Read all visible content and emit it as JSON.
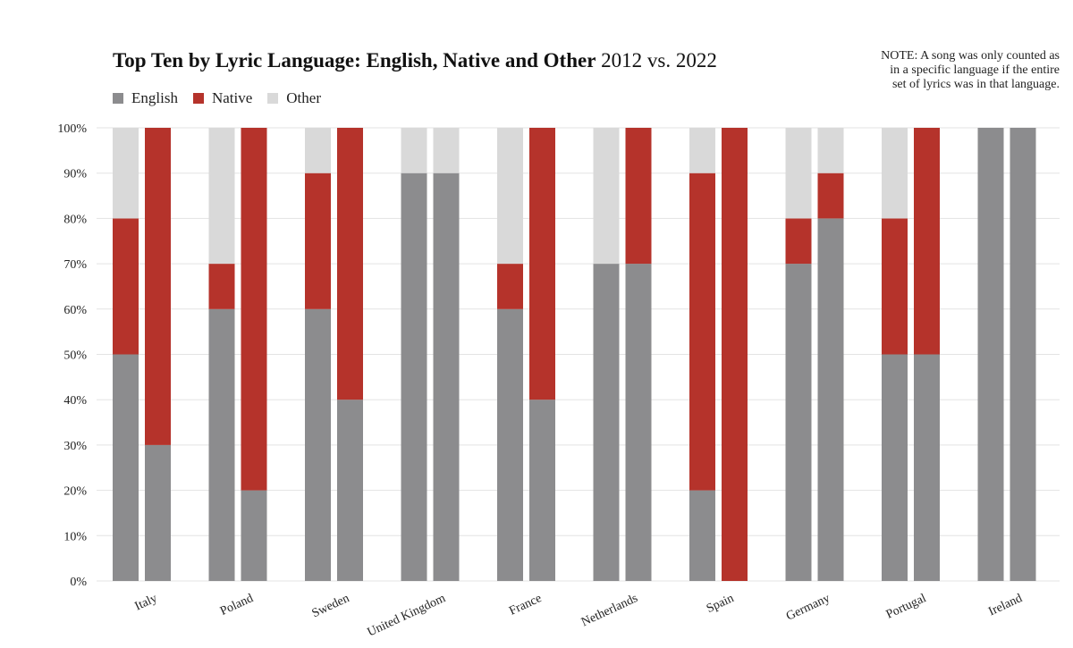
{
  "title": {
    "bold": "Top Ten by Lyric Language: English, Native and Other",
    "normal": "2012 vs. 2022"
  },
  "note": "NOTE: A song was only counted as in a specific language if the entire set of lyrics was in that language.",
  "legend": [
    {
      "label": "English",
      "color": "#8c8c8e"
    },
    {
      "label": "Native",
      "color": "#b5332b"
    },
    {
      "label": "Other",
      "color": "#d9d9d9"
    }
  ],
  "chart_data": {
    "type": "bar",
    "stacked": true,
    "title": "Top Ten by Lyric Language: English, Native and Other 2012 vs. 2022",
    "categories": [
      "Italy",
      "Poland",
      "Sweden",
      "United Kingdom",
      "France",
      "Netherlands",
      "Spain",
      "Germany",
      "Portugal",
      "Ireland"
    ],
    "bars_per_category": [
      "2012",
      "2022"
    ],
    "y_ticks": [
      "0%",
      "10%",
      "20%",
      "30%",
      "40%",
      "50%",
      "60%",
      "70%",
      "80%",
      "90%",
      "100%"
    ],
    "ylim": [
      0,
      100
    ],
    "grid": true,
    "legend_position": "top-left",
    "series": [
      {
        "name": "English",
        "color": "#8c8c8e",
        "values_2012": [
          50,
          60,
          60,
          90,
          60,
          70,
          20,
          70,
          50,
          100
        ],
        "values_2022": [
          30,
          20,
          40,
          90,
          40,
          70,
          0,
          80,
          50,
          100
        ]
      },
      {
        "name": "Native",
        "color": "#b5332b",
        "values_2012": [
          30,
          10,
          30,
          0,
          10,
          0,
          70,
          10,
          30,
          0
        ],
        "values_2022": [
          70,
          80,
          60,
          0,
          60,
          30,
          100,
          10,
          50,
          0
        ]
      },
      {
        "name": "Other",
        "color": "#d9d9d9",
        "values_2012": [
          20,
          30,
          10,
          10,
          30,
          30,
          10,
          20,
          20,
          0
        ],
        "values_2022": [
          0,
          0,
          0,
          10,
          0,
          0,
          0,
          10,
          0,
          0
        ]
      }
    ]
  }
}
